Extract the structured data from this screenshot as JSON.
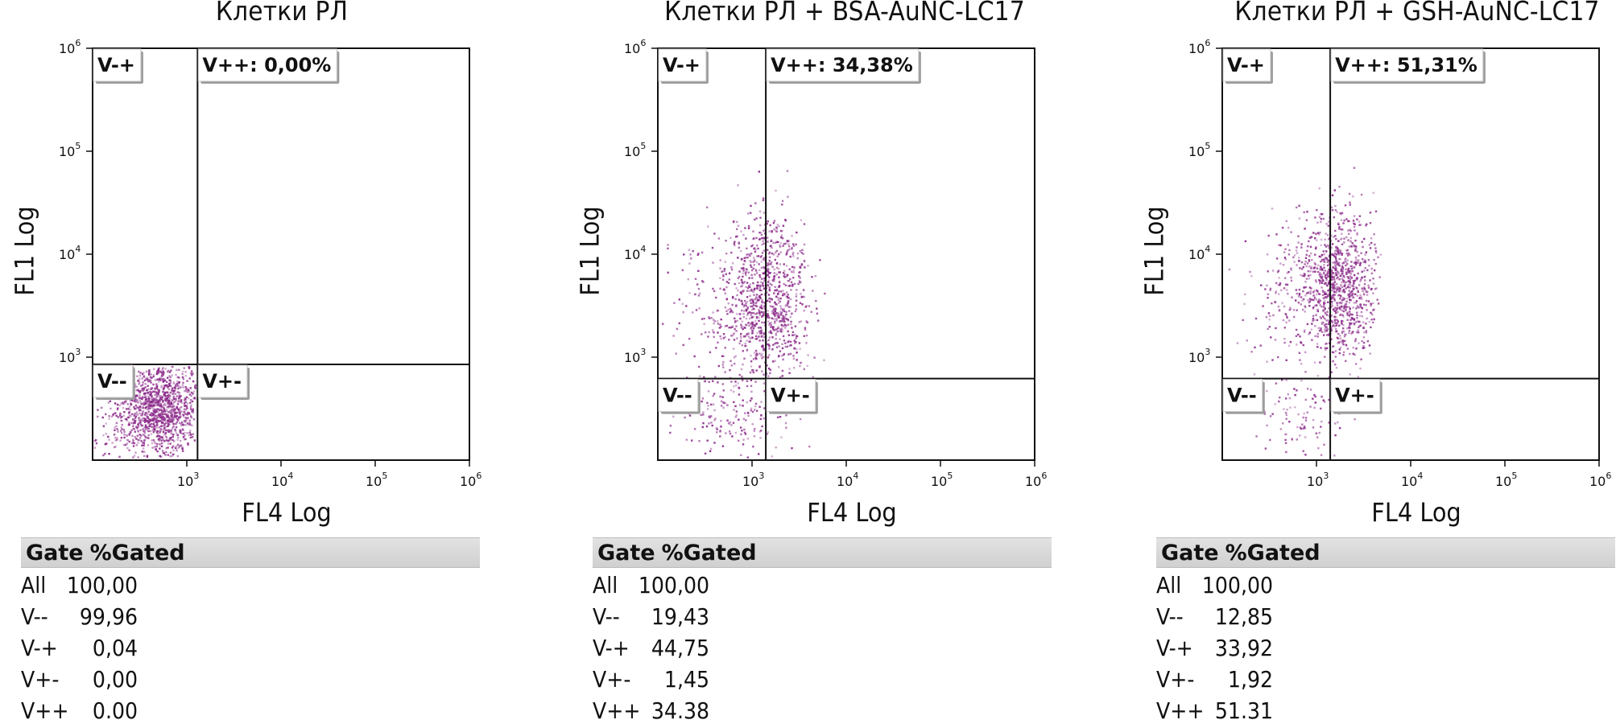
{
  "chart_data": [
    {
      "type": "scatter",
      "title": "Клетки РЛ",
      "xlabel": "FL4 Log",
      "ylabel": "FL1 Log",
      "x_scale": "log",
      "y_scale": "log",
      "xlim": [
        100,
        1000000
      ],
      "ylim": [
        100,
        1000000
      ],
      "x_ticks": [
        {
          "value": 1000,
          "base": "10",
          "exp": "3"
        },
        {
          "value": 10000,
          "base": "10",
          "exp": "4"
        },
        {
          "value": 100000,
          "base": "10",
          "exp": "5"
        },
        {
          "value": 1000000,
          "base": "10",
          "exp": "6"
        }
      ],
      "y_ticks": [
        {
          "value": 1000,
          "base": "10",
          "exp": "3"
        },
        {
          "value": 10000,
          "base": "10",
          "exp": "4"
        },
        {
          "value": 100000,
          "base": "10",
          "exp": "5"
        },
        {
          "value": 1000000,
          "base": "10",
          "exp": "6"
        }
      ],
      "gate_x": 1300,
      "gate_y": 850,
      "quadrants": [
        {
          "name": "V-+",
          "label": "V-+"
        },
        {
          "name": "V++",
          "label": "V++: 0,00%"
        },
        {
          "name": "V--",
          "label": "V--"
        },
        {
          "name": "V+-",
          "label": "V+-"
        }
      ],
      "point_color": "#8b2a8a",
      "populations": [
        {
          "x_center": 560,
          "y_center": 330,
          "x_spread": 0.22,
          "y_spread": 0.22,
          "count": 950,
          "x_min": 130,
          "x_max": 1250,
          "y_min": 105,
          "y_max": 820
        },
        {
          "x_center": 300,
          "y_center": 250,
          "x_spread": 0.3,
          "y_spread": 0.25,
          "count": 250,
          "x_min": 105,
          "x_max": 1250,
          "y_min": 105,
          "y_max": 820
        }
      ],
      "table": {
        "header": [
          "Gate",
          "%Gated"
        ],
        "rows": [
          {
            "gate": "All",
            "pct": "100,00"
          },
          {
            "gate": "V--",
            "pct": "99,96"
          },
          {
            "gate": "V-+",
            "pct": "0,04"
          },
          {
            "gate": "V+-",
            "pct": "0,00"
          },
          {
            "gate": "V++",
            "pct": "0.00"
          }
        ]
      }
    },
    {
      "type": "scatter",
      "title": "Клетки РЛ + BSA-AuNC-LC17",
      "xlabel": "FL4 Log",
      "ylabel": "FL1 Log",
      "x_scale": "log",
      "y_scale": "log",
      "xlim": [
        100,
        1000000
      ],
      "ylim": [
        100,
        1000000
      ],
      "x_ticks": [
        {
          "value": 1000,
          "base": "10",
          "exp": "3"
        },
        {
          "value": 10000,
          "base": "10",
          "exp": "4"
        },
        {
          "value": 100000,
          "base": "10",
          "exp": "5"
        },
        {
          "value": 1000000,
          "base": "10",
          "exp": "6"
        }
      ],
      "y_ticks": [
        {
          "value": 1000,
          "base": "10",
          "exp": "3"
        },
        {
          "value": 10000,
          "base": "10",
          "exp": "4"
        },
        {
          "value": 100000,
          "base": "10",
          "exp": "5"
        },
        {
          "value": 1000000,
          "base": "10",
          "exp": "6"
        }
      ],
      "gate_x": 1400,
      "gate_y": 620,
      "quadrants": [
        {
          "name": "V-+",
          "label": "V-+"
        },
        {
          "name": "V++",
          "label": "V++: 34,38%"
        },
        {
          "name": "V--",
          "label": "V--"
        },
        {
          "name": "V+-",
          "label": "V+-"
        }
      ],
      "point_color": "#8b2a8a",
      "populations": [
        {
          "x_center": 1500,
          "y_center": 3500,
          "x_spread": 0.22,
          "y_spread": 0.4,
          "count": 900,
          "x_min": 110,
          "x_max": 6000,
          "y_min": 105,
          "y_max": 80000
        },
        {
          "x_center": 600,
          "y_center": 2500,
          "x_spread": 0.3,
          "y_spread": 0.45,
          "count": 250,
          "x_min": 110,
          "x_max": 6000,
          "y_min": 105,
          "y_max": 80000
        },
        {
          "x_center": 700,
          "y_center": 250,
          "x_spread": 0.3,
          "y_spread": 0.22,
          "count": 130,
          "x_min": 110,
          "x_max": 3500,
          "y_min": 105,
          "y_max": 600
        }
      ],
      "table": {
        "header": [
          "Gate",
          "%Gated"
        ],
        "rows": [
          {
            "gate": "All",
            "pct": "100,00"
          },
          {
            "gate": "V--",
            "pct": "19,43"
          },
          {
            "gate": "V-+",
            "pct": "44,75"
          },
          {
            "gate": "V+-",
            "pct": "1,45"
          },
          {
            "gate": "V++",
            "pct": "34.38"
          }
        ]
      }
    },
    {
      "type": "scatter",
      "title": "Клетки РЛ + GSH-AuNC-LC17",
      "xlabel": "FL4 Log",
      "ylabel": "FL1 Log",
      "x_scale": "log",
      "y_scale": "log",
      "xlim": [
        100,
        1000000
      ],
      "ylim": [
        100,
        1000000
      ],
      "x_ticks": [
        {
          "value": 1000,
          "base": "10",
          "exp": "3"
        },
        {
          "value": 10000,
          "base": "10",
          "exp": "4"
        },
        {
          "value": 100000,
          "base": "10",
          "exp": "5"
        },
        {
          "value": 1000000,
          "base": "10",
          "exp": "6"
        }
      ],
      "y_ticks": [
        {
          "value": 1000,
          "base": "10",
          "exp": "3"
        },
        {
          "value": 10000,
          "base": "10",
          "exp": "4"
        },
        {
          "value": 100000,
          "base": "10",
          "exp": "5"
        },
        {
          "value": 1000000,
          "base": "10",
          "exp": "6"
        }
      ],
      "gate_x": 1400,
      "gate_y": 620,
      "quadrants": [
        {
          "name": "V-+",
          "label": "V-+"
        },
        {
          "name": "V++",
          "label": "V++: 51,31%"
        },
        {
          "name": "V--",
          "label": "V--"
        },
        {
          "name": "V+-",
          "label": "V+-"
        }
      ],
      "point_color": "#8b2a8a",
      "populations": [
        {
          "x_center": 1700,
          "y_center": 5000,
          "x_spread": 0.2,
          "y_spread": 0.35,
          "count": 950,
          "x_min": 110,
          "x_max": 5000,
          "y_min": 105,
          "y_max": 90000
        },
        {
          "x_center": 600,
          "y_center": 3500,
          "x_spread": 0.3,
          "y_spread": 0.45,
          "count": 200,
          "x_min": 110,
          "x_max": 5000,
          "y_min": 105,
          "y_max": 90000
        },
        {
          "x_center": 800,
          "y_center": 250,
          "x_spread": 0.25,
          "y_spread": 0.2,
          "count": 90,
          "x_min": 200,
          "x_max": 3000,
          "y_min": 105,
          "y_max": 600
        }
      ],
      "table": {
        "header": [
          "Gate",
          "%Gated"
        ],
        "rows": [
          {
            "gate": "All",
            "pct": "100,00"
          },
          {
            "gate": "V--",
            "pct": "12,85"
          },
          {
            "gate": "V-+",
            "pct": "33,92"
          },
          {
            "gate": "V+-",
            "pct": "1,92"
          },
          {
            "gate": "V++",
            "pct": "51.31"
          }
        ]
      }
    }
  ]
}
